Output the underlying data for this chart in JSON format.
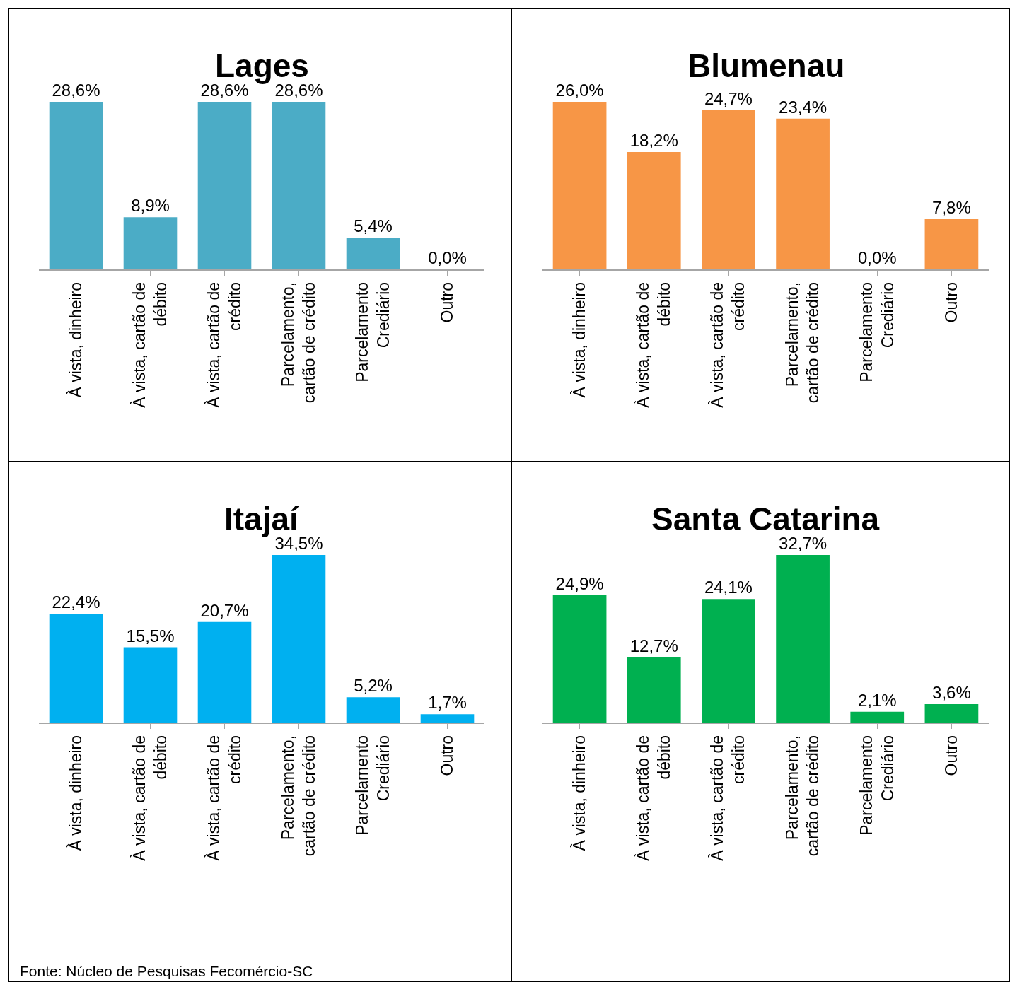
{
  "chart_data": [
    {
      "type": "bar",
      "title": "Lages",
      "categories": [
        "À vista, dinheiro",
        "À vista, cartão de débito",
        "À vista, cartão de crédito",
        "Parcelamento, cartão de crédito",
        "Parcelamento Crediário",
        "Outro"
      ],
      "values": [
        28.6,
        8.9,
        28.6,
        28.6,
        5.4,
        0.0
      ],
      "value_labels": [
        "28,6%",
        "8,9%",
        "28,6%",
        "28,6%",
        "5,4%",
        "0,0%"
      ],
      "color": "#4bacc6"
    },
    {
      "type": "bar",
      "title": "Blumenau",
      "categories": [
        "À vista, dinheiro",
        "À vista, cartão de débito",
        "À vista, cartão de crédito",
        "Parcelamento, cartão de crédito",
        "Parcelamento Crediário",
        "Outro"
      ],
      "values": [
        26.0,
        18.2,
        24.7,
        23.4,
        0.0,
        7.8
      ],
      "value_labels": [
        "26,0%",
        "18,2%",
        "24,7%",
        "23,4%",
        "0,0%",
        "7,8%"
      ],
      "color": "#f79646"
    },
    {
      "type": "bar",
      "title": "Itajaí",
      "categories": [
        "À vista, dinheiro",
        "À vista, cartão de débito",
        "À vista, cartão de crédito",
        "Parcelamento, cartão de crédito",
        "Parcelamento Crediário",
        "Outro"
      ],
      "values": [
        22.4,
        15.5,
        20.7,
        34.5,
        5.2,
        1.7
      ],
      "value_labels": [
        "22,4%",
        "15,5%",
        "20,7%",
        "34,5%",
        "5,2%",
        "1,7%"
      ],
      "color": "#00b0f0",
      "annotations": [
        "Fonte: Núcleo de Pesquisas Fecomércio-SC"
      ]
    },
    {
      "type": "bar",
      "title": "Santa Catarina",
      "categories": [
        "À vista, dinheiro",
        "À vista, cartão de débito",
        "À vista, cartão de crédito",
        "Parcelamento, cartão de crédito",
        "Parcelamento Crediário",
        "Outro"
      ],
      "values": [
        24.9,
        12.7,
        24.1,
        32.7,
        2.1,
        3.6
      ],
      "value_labels": [
        "24,9%",
        "12,7%",
        "24,1%",
        "32,7%",
        "2,1%",
        "3,6%"
      ],
      "color": "#00b050"
    }
  ]
}
